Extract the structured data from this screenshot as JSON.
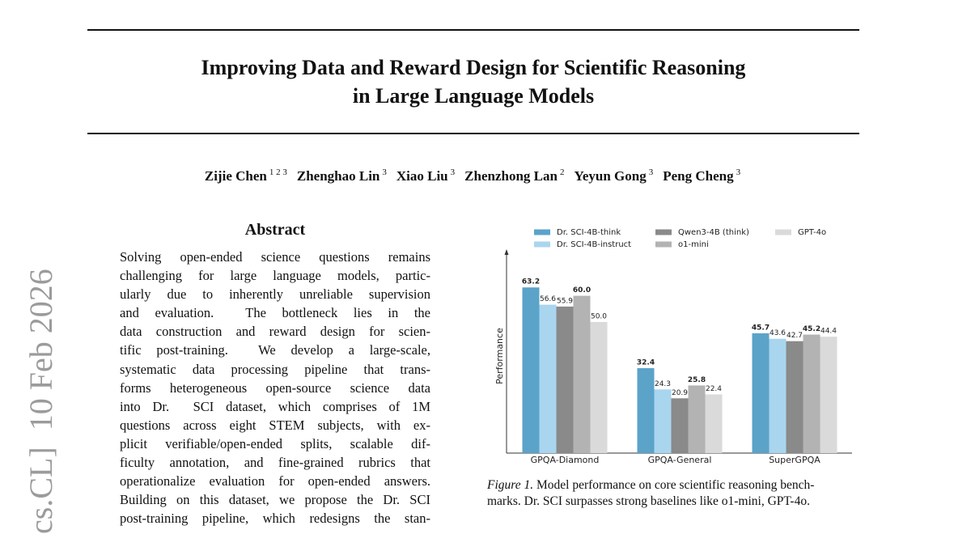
{
  "arxiv_stamp": "cs.CL]  10 Feb 2026",
  "title_lines": [
    "Improving Data and Reward Design for Scientific Reasoning",
    "in Large Language Models"
  ],
  "authors": [
    {
      "name": "Zijie Chen",
      "affiliations": "1 2 3"
    },
    {
      "name": "Zhenghao Lin",
      "affiliations": "3"
    },
    {
      "name": "Xiao Liu",
      "affiliations": "3"
    },
    {
      "name": "Zhenzhong Lan",
      "affiliations": "2"
    },
    {
      "name": "Yeyun Gong",
      "affiliations": "3"
    },
    {
      "name": "Peng Cheng",
      "affiliations": "3"
    }
  ],
  "abstract": {
    "heading": "Abstract",
    "lines": [
      "Solving open-ended science questions remains",
      "challenging for large language models, partic-",
      "ularly due to inherently unreliable supervision",
      "and evaluation.  The bottleneck lies in the",
      "data construction and reward design for scien-",
      "tific post-training.  We develop a large-scale,",
      "systematic data processing pipeline that trans-",
      "forms heterogeneous open-source science data",
      "into Dr.  SCI dataset, which comprises of 1M",
      "questions across eight STEM subjects, with ex-",
      "plicit verifiable/open-ended splits, scalable dif-",
      "ficulty annotation, and fine-grained rubrics that",
      "operationalize evaluation for open-ended answers.",
      "Building on this dataset, we propose the Dr. SCI",
      "post-training pipeline, which redesigns the stan-"
    ]
  },
  "chart_data": {
    "type": "bar",
    "y_label": "Performance",
    "categories": [
      "GPQA-Diamond",
      "GPQA-General",
      "SuperGPQA"
    ],
    "ylim": [
      0,
      75
    ],
    "series": [
      {
        "name": "Dr. SCI-4B-think",
        "color": "#5ba3c9",
        "values": [
          63.2,
          32.4,
          45.7
        ],
        "label_weight": "bold"
      },
      {
        "name": "Dr. SCI-4B-instruct",
        "color": "#a9d5ef",
        "values": [
          56.6,
          24.3,
          43.6
        ]
      },
      {
        "name": "Qwen3-4B (think)",
        "color": "#8a8a8a",
        "values": [
          55.9,
          20.9,
          42.7
        ]
      },
      {
        "name": "o1-mini",
        "color": "#b3b3b3",
        "values": [
          60.0,
          25.8,
          45.2
        ],
        "value_labels": [
          "60.0",
          "25.8",
          "45.2"
        ],
        "label_weight": "bold"
      },
      {
        "name": "GPT-4o",
        "color": "#dadada",
        "values": [
          50.0,
          22.4,
          44.4
        ],
        "value_labels": [
          "50.0",
          "22.4",
          "44.4"
        ]
      }
    ]
  },
  "figure_caption": {
    "label": "Figure 1.",
    "lines": [
      "Model performance on core scientific reasoning bench-",
      "marks. Dr. SCI surpasses strong baselines like o1-mini, GPT-4o."
    ]
  }
}
